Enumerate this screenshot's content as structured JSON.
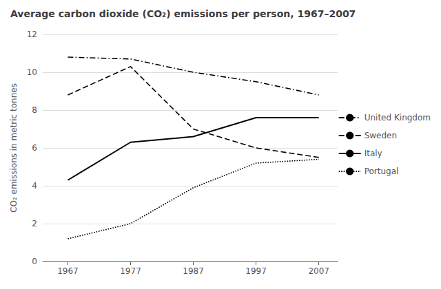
{
  "chart_data": {
    "type": "line",
    "title": "Average carbon dioxide (CO₂) emissions per person, 1967–2007",
    "ylabel": "CO₂ emissions in metric tonnes",
    "x": [
      1967,
      1977,
      1987,
      1997,
      2007
    ],
    "series": [
      {
        "name": "United Kingdom",
        "values": [
          10.8,
          10.7,
          10.0,
          9.5,
          8.8
        ],
        "color": "#000000",
        "line_style": "dashdot"
      },
      {
        "name": "Sweden",
        "values": [
          8.8,
          10.3,
          7.0,
          6.0,
          5.5
        ],
        "color": "#000000",
        "line_style": "dashed"
      },
      {
        "name": "Italy",
        "values": [
          4.3,
          6.3,
          6.6,
          7.6,
          7.6
        ],
        "color": "#000000",
        "line_style": "solid"
      },
      {
        "name": "Portugal",
        "values": [
          1.2,
          2.0,
          3.9,
          5.2,
          5.4
        ],
        "color": "#000000",
        "line_style": "dotted"
      }
    ],
    "xlim": [
      1963,
      2010
    ],
    "xticks": [
      1967,
      1977,
      1987,
      1997,
      2007
    ],
    "ylim": [
      0,
      12
    ],
    "yticks": [
      0,
      2,
      4,
      6,
      8,
      10,
      12
    ],
    "grid": true,
    "legend": "right"
  }
}
